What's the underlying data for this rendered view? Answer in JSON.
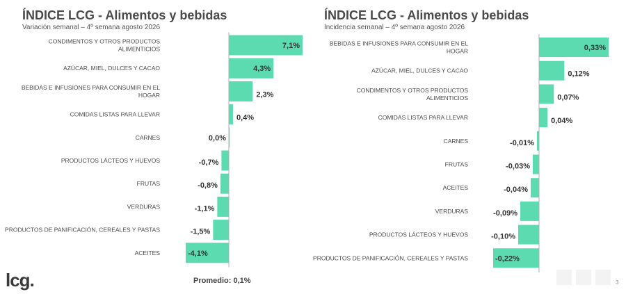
{
  "left": {
    "title": "ÍNDICE LCG - Alimentos y bebidas",
    "subtitle": "Variación semanal – 4º semana agosto 2026",
    "footer": "Promedio: 0,1%"
  },
  "right": {
    "title": "ÍNDICE LCG - Alimentos y bebidas",
    "subtitle": "Incidencia semanal – 4º semana agosto 2026"
  },
  "brand": {
    "logo": "lcg."
  },
  "page_number": "3",
  "colors": {
    "bar": "#5ddbb0",
    "axis": "#b0b0b0",
    "text": "#4a4a4a"
  },
  "chart_data": [
    {
      "type": "bar",
      "orientation": "horizontal",
      "title": "ÍNDICE LCG - Alimentos y bebidas",
      "subtitle": "Variación semanal – 4º semana agosto 2026",
      "categories": [
        "CONDIMENTOS Y OTROS PRODUCTOS\nALIMENTICIOS",
        "AZÚCAR, MIEL, DULCES Y CACAO",
        "BEBIDAS E INFUSIONES PARA CONSUMIR EN EL\nHOGAR",
        "COMIDAS LISTAS PARA LLEVAR",
        "CARNES",
        "PRODUCTOS LÁCTEOS Y HUEVOS",
        "FRUTAS",
        "VERDURAS",
        "PRODUCTOS DE PANIFICACIÓN, CEREALES Y PASTAS",
        "ACEITES"
      ],
      "values": [
        7.1,
        4.3,
        2.3,
        0.4,
        0.0,
        -0.7,
        -0.8,
        -1.1,
        -1.5,
        -4.1
      ],
      "labels": [
        "7,1%",
        "4,3%",
        "2,3%",
        "0,4%",
        "0,0%",
        "-0,7%",
        "-0,8%",
        "-1,1%",
        "-1,5%",
        "-4,1%"
      ],
      "xlim": [
        -4.3,
        7.3
      ],
      "grid": false,
      "legend": "none"
    },
    {
      "type": "bar",
      "orientation": "horizontal",
      "title": "ÍNDICE LCG - Alimentos y bebidas",
      "subtitle": "Incidencia semanal – 4º semana agosto 2026",
      "categories": [
        "BEBIDAS E INFUSIONES PARA CONSUMIR EN EL\nHOGAR",
        "AZÚCAR, MIEL, DULCES Y CACAO",
        "CONDIMENTOS Y OTROS PRODUCTOS\nALIMENTICIOS",
        "COMIDAS LISTAS PARA LLEVAR",
        "CARNES",
        "FRUTAS",
        "ACEITES",
        "VERDURAS",
        "PRODUCTOS LÁCTEOS Y HUEVOS",
        "PRODUCTOS DE PANIFICACIÓN, CEREALES Y PASTAS"
      ],
      "values": [
        0.33,
        0.12,
        0.07,
        0.04,
        -0.01,
        -0.03,
        -0.04,
        -0.09,
        -0.1,
        -0.22
      ],
      "labels": [
        "0,33%",
        "0,12%",
        "0,07%",
        "0,04%",
        "-0,01%",
        "-0,03%",
        "-0,04%",
        "-0,09%",
        "-0,10%",
        "-0,22%"
      ],
      "xlim": [
        -0.22,
        0.33
      ],
      "grid": false,
      "legend": "none"
    }
  ]
}
